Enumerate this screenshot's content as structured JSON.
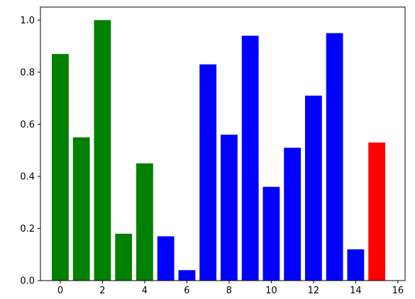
{
  "chart_data": {
    "type": "bar",
    "x": [
      0,
      1,
      2,
      3,
      4,
      5,
      6,
      7,
      8,
      9,
      10,
      11,
      12,
      13,
      14,
      15
    ],
    "values": [
      0.87,
      0.55,
      1.0,
      0.18,
      0.45,
      0.17,
      0.04,
      0.83,
      0.56,
      0.94,
      0.36,
      0.51,
      0.71,
      0.95,
      0.12,
      0.53
    ],
    "colors": [
      "green",
      "green",
      "green",
      "green",
      "green",
      "blue",
      "blue",
      "blue",
      "blue",
      "blue",
      "blue",
      "blue",
      "blue",
      "blue",
      "blue",
      "red"
    ],
    "xlim": [
      -0.94,
      16.34
    ],
    "ylim": [
      0,
      1.05
    ],
    "xticks": [
      0,
      2,
      4,
      6,
      8,
      10,
      12,
      14,
      16
    ],
    "yticks": [
      {
        "value": 0,
        "label": "0.0"
      },
      0.2,
      0.4,
      0.6,
      0.8,
      {
        "value": 1,
        "label": "1.0"
      }
    ],
    "grid": false
  }
}
